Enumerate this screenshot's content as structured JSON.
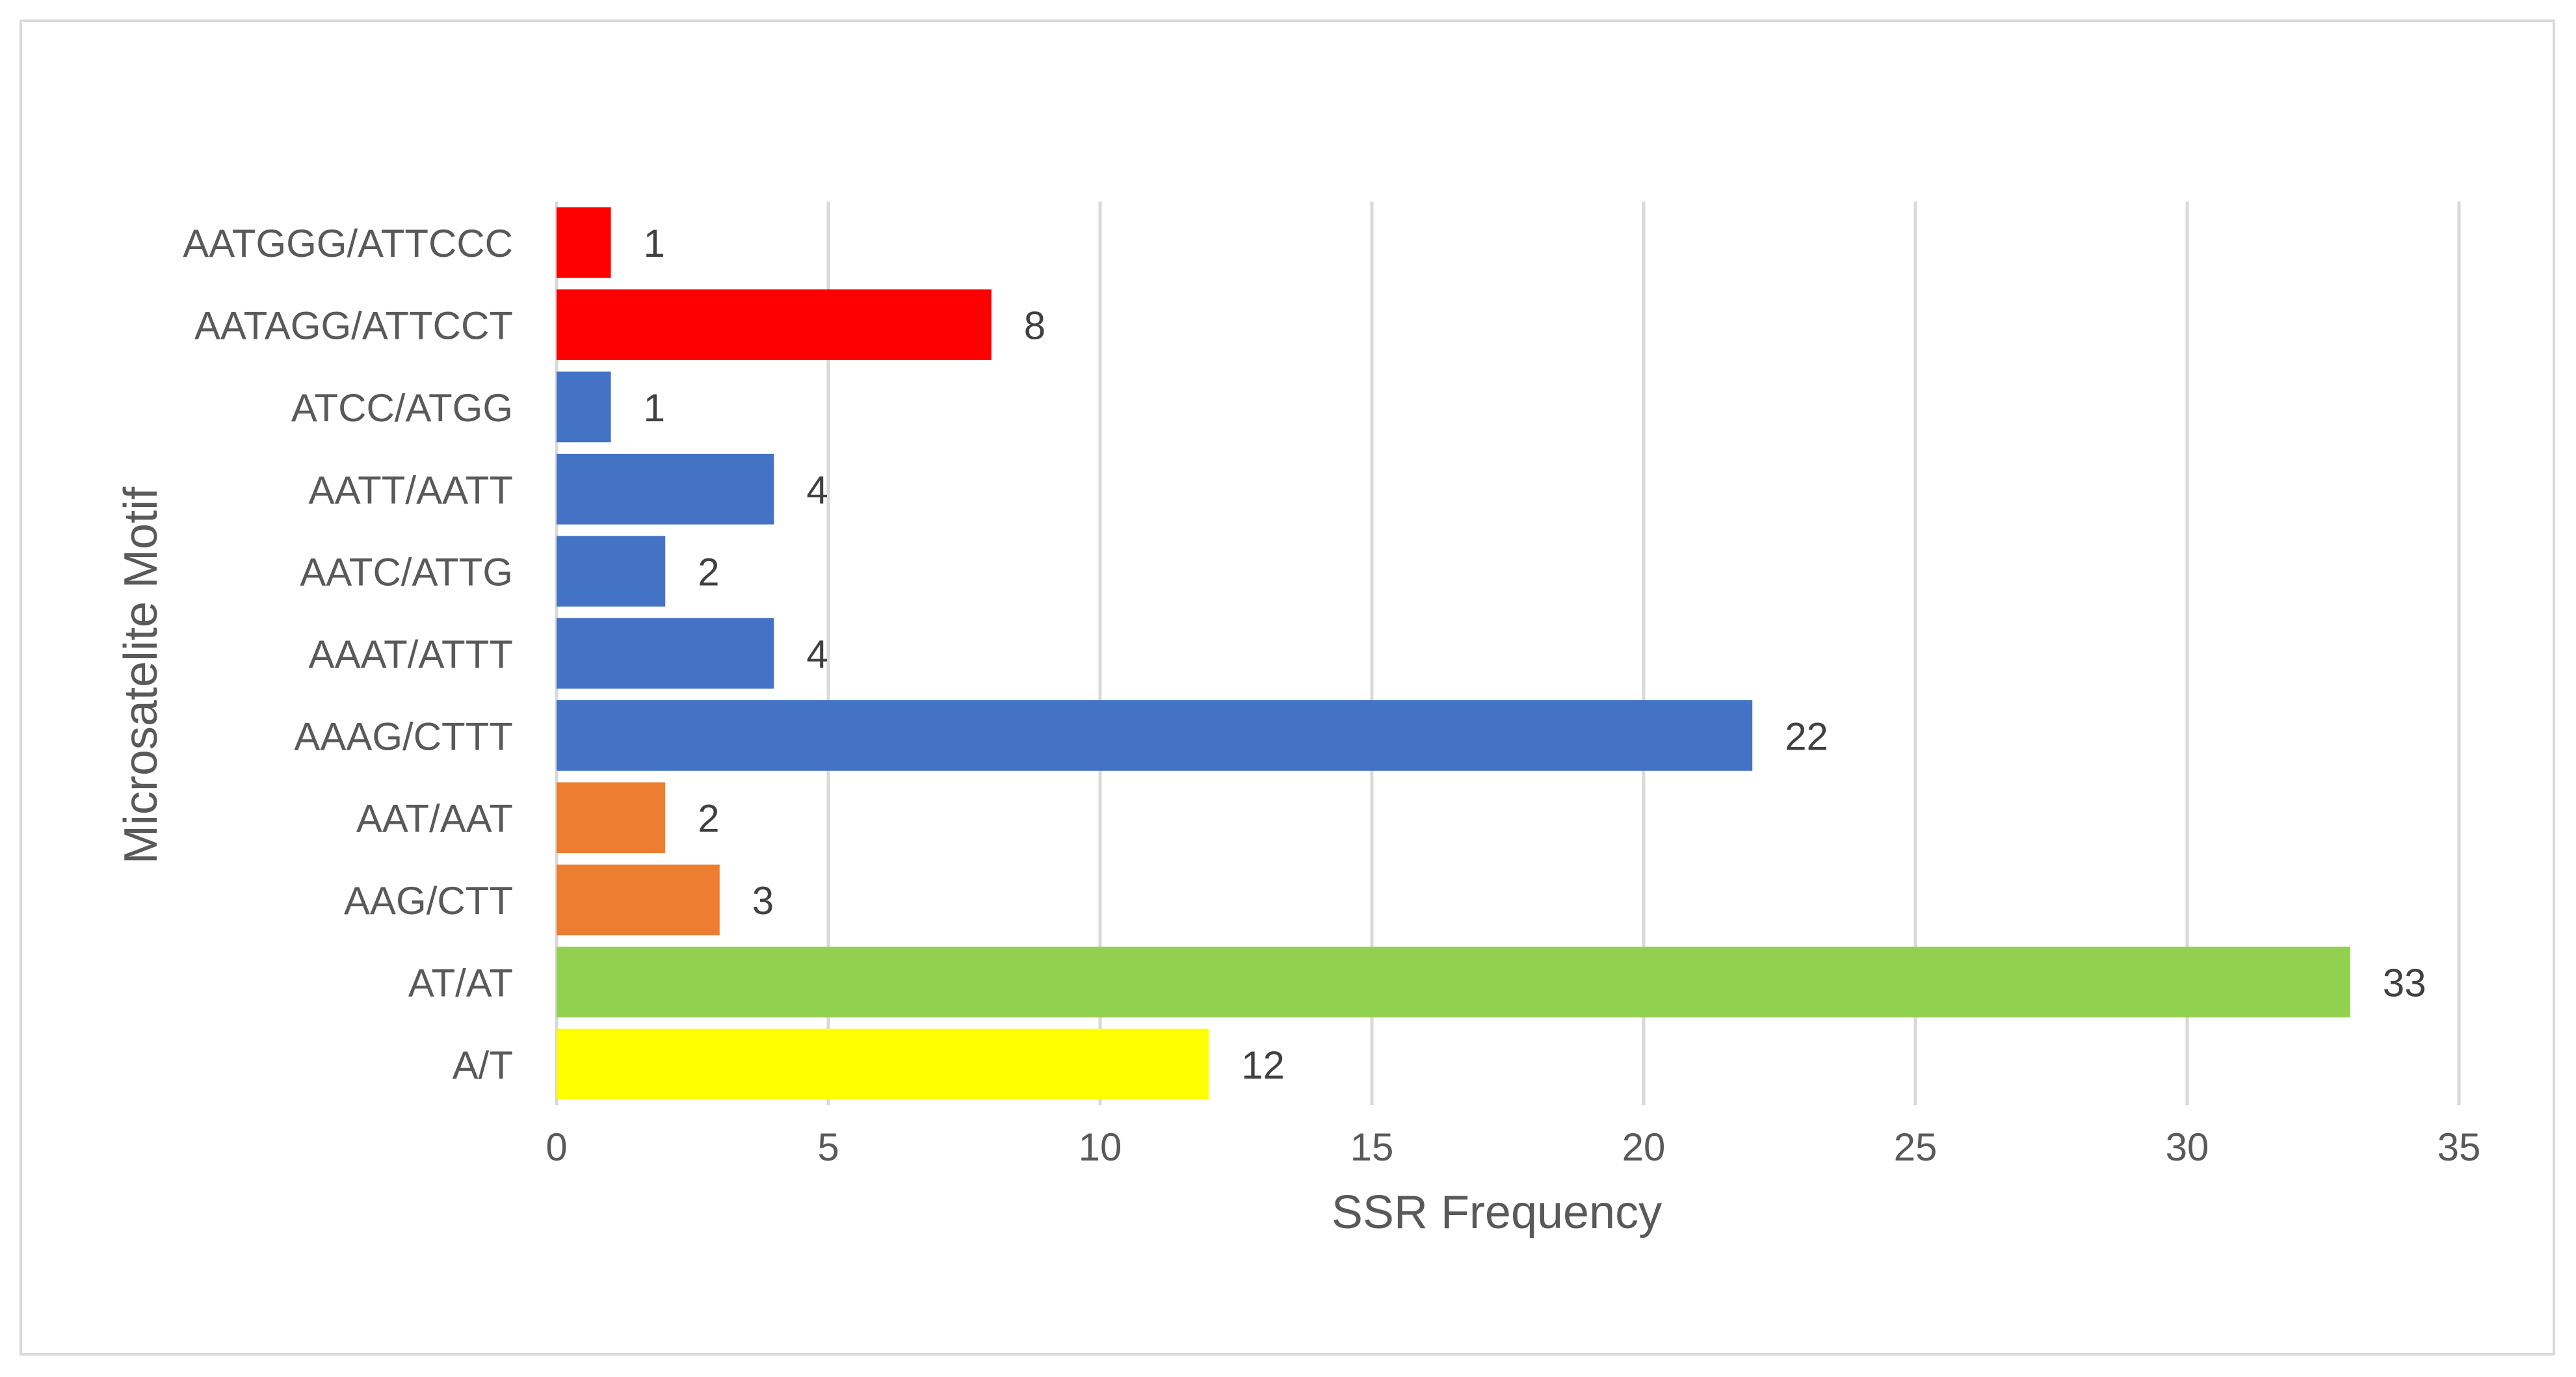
{
  "chart_data": {
    "type": "bar",
    "orientation": "horizontal",
    "title": "",
    "xlabel": "SSR Frequency",
    "ylabel": "Microsatelite Motif",
    "xlim": [
      0,
      35
    ],
    "x_ticks": [
      0,
      5,
      10,
      15,
      20,
      25,
      30,
      35
    ],
    "grid": true,
    "legend": "none",
    "categories": [
      "A/T",
      "AT/AT",
      "AAG/CTT",
      "AAT/AAT",
      "AAAG/CTTT",
      "AAAT/ATTT",
      "AATC/ATTG",
      "AATT/AATT",
      "ATCC/ATGG",
      "AATAGG/ATTCCT",
      "AATGGG/ATTCCC"
    ],
    "values": [
      12,
      33,
      3,
      2,
      22,
      4,
      2,
      4,
      1,
      8,
      1
    ],
    "colors": [
      "#ffff00",
      "#92d050",
      "#ed7d31",
      "#ed7d31",
      "#4472c4",
      "#4472c4",
      "#4472c4",
      "#4472c4",
      "#4472c4",
      "#ff0000",
      "#ff0000"
    ],
    "gridline_color": "#d9d9d9",
    "axis_color": "#d9d9d9"
  }
}
